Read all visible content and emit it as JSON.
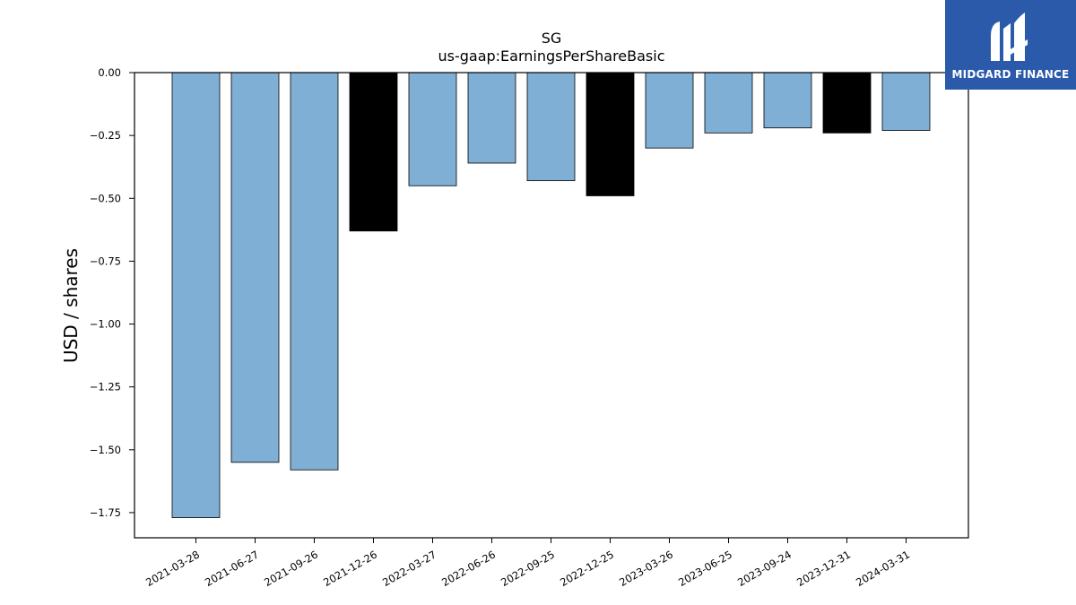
{
  "chart_data": {
    "type": "bar",
    "title": "SG",
    "subtitle": "us-gaap:EarningsPerShareBasic",
    "xlabel": "",
    "ylabel": "USD / shares",
    "ylim": [
      -1.85,
      0.0
    ],
    "yticks": [
      0.0,
      -0.25,
      -0.5,
      -0.75,
      -1.0,
      -1.25,
      -1.5,
      -1.75
    ],
    "ytick_labels": [
      "0.00",
      "−0.25",
      "−0.50",
      "−0.75",
      "−1.00",
      "−1.25",
      "−1.50",
      "−1.75"
    ],
    "categories": [
      "2021-03-28",
      "2021-06-27",
      "2021-09-26",
      "2021-12-26",
      "2022-03-27",
      "2022-06-26",
      "2022-09-25",
      "2022-12-25",
      "2023-03-26",
      "2023-06-25",
      "2023-09-24",
      "2023-12-31",
      "2024-03-31"
    ],
    "values": [
      -1.77,
      -1.55,
      -1.58,
      -0.63,
      -0.45,
      -0.36,
      -0.43,
      -0.49,
      -0.3,
      -0.24,
      -0.22,
      -0.24,
      -0.23
    ],
    "bar_colors": [
      "#7fafd4",
      "#7fafd4",
      "#7fafd4",
      "#000000",
      "#7fafd4",
      "#7fafd4",
      "#7fafd4",
      "#000000",
      "#7fafd4",
      "#7fafd4",
      "#7fafd4",
      "#000000",
      "#7fafd4"
    ],
    "grid": false
  },
  "logo": {
    "text": "MIDGARD FINANCE",
    "background": "#2b5aab"
  }
}
